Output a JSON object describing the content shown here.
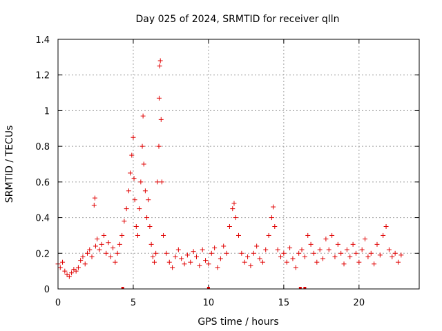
{
  "chart_data": {
    "type": "scatter",
    "title": "Day 025 of 2024, SRMTID for receiver qlln",
    "xlabel": "GPS time / hours",
    "ylabel": "SRMTID / TECUs",
    "xlim": [
      0,
      24
    ],
    "ylim": [
      0,
      1.4
    ],
    "x_ticks": [
      0,
      5,
      10,
      15,
      20
    ],
    "x_tick_labels": [
      "0",
      "5",
      "10",
      "15",
      "20"
    ],
    "y_ticks": [
      0,
      0.2,
      0.4,
      0.6,
      0.8,
      1.0,
      1.2,
      1.4
    ],
    "y_tick_labels": [
      "0",
      "0.2",
      "0.4",
      "0.6",
      "0.8",
      "1",
      "1.2",
      "1.4"
    ],
    "grid": true,
    "marker": "+",
    "color": "#e00000",
    "series": [
      {
        "name": "SRMTID",
        "x": [
          0.0,
          0.15,
          0.3,
          0.45,
          0.6,
          0.75,
          0.9,
          1.05,
          1.2,
          1.35,
          1.5,
          1.65,
          1.8,
          1.95,
          2.1,
          2.25,
          2.4,
          2.45,
          2.5,
          2.6,
          2.75,
          2.9,
          3.05,
          3.2,
          3.35,
          3.5,
          3.65,
          3.8,
          3.95,
          4.1,
          4.25,
          4.4,
          4.55,
          4.7,
          4.8,
          4.9,
          5.0,
          5.05,
          5.1,
          5.2,
          5.3,
          5.4,
          5.5,
          5.6,
          5.65,
          5.7,
          5.8,
          5.9,
          6.0,
          6.1,
          6.2,
          6.3,
          6.4,
          6.5,
          6.6,
          6.7,
          6.72,
          6.75,
          6.8,
          6.85,
          6.9,
          7.0,
          7.2,
          7.4,
          7.6,
          7.8,
          8.0,
          8.2,
          8.4,
          8.6,
          8.8,
          9.0,
          9.2,
          9.4,
          9.6,
          9.8,
          10.0,
          10.2,
          10.4,
          10.6,
          10.8,
          11.0,
          11.2,
          11.4,
          11.6,
          11.7,
          11.8,
          12.0,
          12.2,
          12.4,
          12.6,
          12.8,
          13.0,
          13.2,
          13.4,
          13.6,
          13.8,
          14.0,
          14.2,
          14.3,
          14.4,
          14.6,
          14.8,
          15.0,
          15.2,
          15.4,
          15.6,
          15.8,
          16.0,
          16.2,
          16.4,
          16.6,
          16.8,
          17.0,
          17.2,
          17.4,
          17.6,
          17.8,
          18.0,
          18.2,
          18.4,
          18.6,
          18.8,
          19.0,
          19.2,
          19.4,
          19.6,
          19.8,
          20.0,
          20.2,
          20.4,
          20.6,
          20.8,
          21.0,
          21.2,
          21.4,
          21.6,
          21.8,
          22.0,
          22.2,
          22.4,
          22.6,
          22.8
        ],
        "y": [
          0.14,
          0.12,
          0.15,
          0.1,
          0.08,
          0.07,
          0.09,
          0.11,
          0.1,
          0.12,
          0.16,
          0.18,
          0.14,
          0.2,
          0.22,
          0.18,
          0.47,
          0.51,
          0.24,
          0.28,
          0.22,
          0.25,
          0.3,
          0.2,
          0.26,
          0.18,
          0.23,
          0.15,
          0.2,
          0.25,
          0.3,
          0.38,
          0.45,
          0.55,
          0.65,
          0.75,
          0.85,
          0.62,
          0.5,
          0.35,
          0.3,
          0.45,
          0.6,
          0.8,
          0.97,
          0.7,
          0.55,
          0.4,
          0.5,
          0.35,
          0.25,
          0.18,
          0.15,
          0.2,
          0.6,
          0.8,
          1.07,
          1.25,
          1.28,
          0.95,
          0.6,
          0.3,
          0.2,
          0.15,
          0.12,
          0.18,
          0.22,
          0.17,
          0.14,
          0.19,
          0.15,
          0.21,
          0.18,
          0.13,
          0.22,
          0.16,
          0.14,
          0.2,
          0.23,
          0.12,
          0.17,
          0.24,
          0.2,
          0.35,
          0.45,
          0.48,
          0.4,
          0.3,
          0.2,
          0.15,
          0.18,
          0.13,
          0.2,
          0.24,
          0.17,
          0.15,
          0.22,
          0.3,
          0.4,
          0.46,
          0.35,
          0.22,
          0.18,
          0.2,
          0.15,
          0.23,
          0.17,
          0.12,
          0.2,
          0.22,
          0.18,
          0.3,
          0.25,
          0.2,
          0.15,
          0.22,
          0.17,
          0.28,
          0.22,
          0.3,
          0.18,
          0.25,
          0.2,
          0.14,
          0.22,
          0.18,
          0.25,
          0.2,
          0.15,
          0.22,
          0.28,
          0.18,
          0.2,
          0.14,
          0.25,
          0.19,
          0.3,
          0.35,
          0.22,
          0.18,
          0.2,
          0.15,
          0.19
        ],
        "x_zero": [
          4.3,
          10.0,
          16.1,
          16.4
        ],
        "y_zero": [
          0,
          0,
          0,
          0
        ]
      }
    ]
  }
}
